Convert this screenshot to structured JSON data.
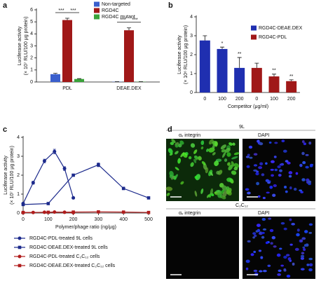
{
  "chart_data": [
    {
      "type": "bar",
      "panel": "a",
      "ylabel": [
        "Luciferase activity",
        "(× 10⁷ RLU/100 μg protein)"
      ],
      "categories": [
        "PDL",
        "DEAE.DEX"
      ],
      "series": [
        {
          "name": "Non-targeted",
          "color": "#3a5fcd",
          "values": [
            0.65,
            0.02
          ],
          "errors": [
            0.07,
            0.01
          ]
        },
        {
          "name": "RGD4C",
          "color": "#a01818",
          "values": [
            5.15,
            4.3
          ],
          "errors": [
            0.15,
            0.2
          ]
        },
        {
          "name": "RGD4C mutant",
          "color": "#3aa33a",
          "values": [
            0.25,
            0.02
          ],
          "errors": [
            0.03,
            0.01
          ]
        }
      ],
      "annotations": [
        "***",
        "***",
        "***",
        "***"
      ],
      "ylim": [
        0,
        6
      ],
      "yticks": [
        0,
        1,
        2,
        3,
        4,
        5,
        6
      ]
    },
    {
      "type": "bar",
      "panel": "b",
      "ylabel": [
        "Luciferase activity",
        "(× 10⁶ RLU/100 μg protein)"
      ],
      "xlabel": "Competitor (μg/ml)",
      "categories": [
        "0",
        "100",
        "200",
        "0",
        "100",
        "200"
      ],
      "series": [
        {
          "name": "RGD4C-DEAE.DEX",
          "color": "#1f2fb0",
          "values": [
            2.75,
            2.3,
            1.3,
            null,
            null,
            null
          ],
          "errors": [
            0.25,
            0.1,
            0.55,
            null,
            null,
            null
          ],
          "annotations": [
            null,
            "*",
            "**",
            null,
            null,
            null
          ]
        },
        {
          "name": "RGD4C-PDL",
          "color": "#a01818",
          "values": [
            null,
            null,
            null,
            1.3,
            0.85,
            0.6
          ],
          "errors": [
            null,
            null,
            null,
            0.25,
            0.12,
            0.07
          ],
          "annotations": [
            null,
            null,
            null,
            null,
            "**",
            "**"
          ]
        }
      ],
      "ylim": [
        0,
        4
      ],
      "yticks": [
        0,
        1,
        2,
        3,
        4
      ]
    },
    {
      "type": "line",
      "panel": "c",
      "ylabel": [
        "Luciferase activity",
        "(× 10⁷ RLU/100 μg protein)"
      ],
      "xlabel": "Polymer/phage ratio (ng/μg)",
      "series": [
        {
          "name": "RGD4C-PDL-treated 9L cells",
          "color": "#1c2a8c",
          "marker": "circle",
          "x": [
            0,
            40,
            85,
            125,
            165,
            200
          ],
          "values": [
            0.5,
            1.6,
            2.75,
            3.25,
            2.35,
            0.8
          ],
          "errors": [
            0.05,
            0.08,
            0.1,
            0.12,
            0.1,
            0.05
          ]
        },
        {
          "name": "RGD4C-DEAE.DEX-treated 9L cells",
          "color": "#1c2a8c",
          "marker": "square",
          "x": [
            0,
            100,
            200,
            300,
            400,
            500
          ],
          "values": [
            0.45,
            0.5,
            2.0,
            2.55,
            1.3,
            0.8
          ],
          "errors": [
            0.03,
            0.03,
            0.05,
            0.1,
            0.07,
            0.04
          ]
        },
        {
          "name": "RGD4C-PDL-treated C₂C₁₂ cells",
          "color": "#b01c1c",
          "marker": "circle",
          "x": [
            0,
            40,
            85,
            125,
            165,
            200
          ],
          "values": [
            0.02,
            0.03,
            0.04,
            0.05,
            0.04,
            0.02
          ]
        },
        {
          "name": "RGD4C-DEAE.DEX-treated C₂C₁₂ cells",
          "color": "#b01c1c",
          "marker": "square",
          "x": [
            0,
            100,
            200,
            300,
            400,
            500
          ],
          "values": [
            0.03,
            0.04,
            0.05,
            0.06,
            0.05,
            0.03
          ]
        }
      ],
      "xlim": [
        0,
        500
      ],
      "xticks": [
        0,
        100,
        200,
        300,
        400,
        500
      ],
      "ylim": [
        0,
        4
      ],
      "yticks": [
        0,
        1,
        2,
        3,
        4
      ]
    }
  ],
  "panel_d": {
    "panel": "d",
    "rows": [
      {
        "title": "9L",
        "images": [
          "αᵥ integrin",
          "DAPI"
        ]
      },
      {
        "title": "C₂C₁₂",
        "images": [
          "αᵥ integrin",
          "DAPI"
        ]
      }
    ]
  }
}
